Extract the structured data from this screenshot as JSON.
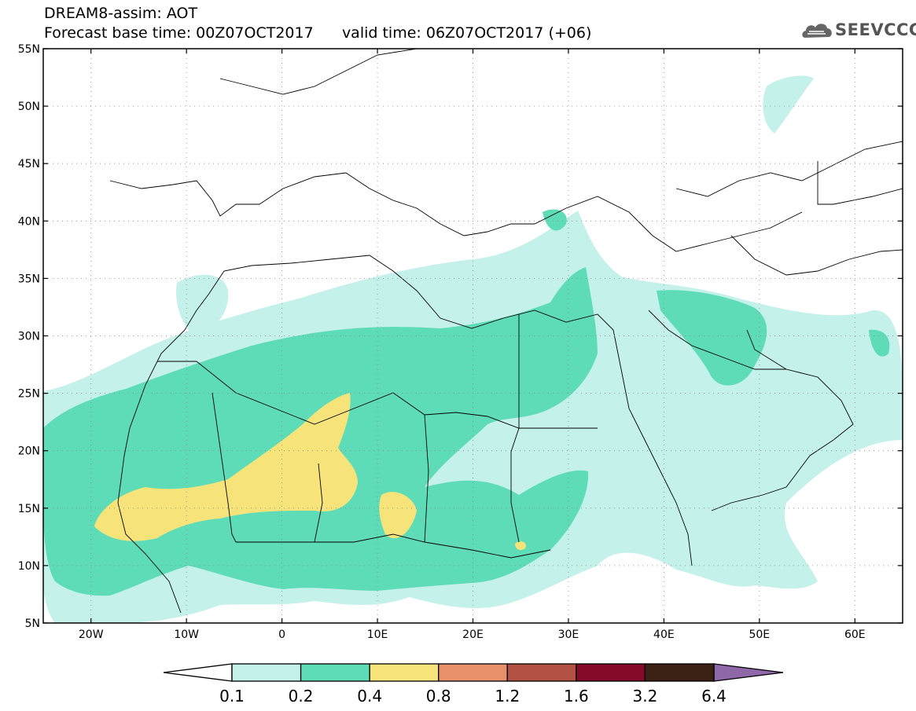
{
  "header": {
    "model_title": "DREAM8-assim: AOT",
    "forecast_label": "Forecast base time: 00Z07OCT2017",
    "valid_label": "valid time: 06Z07OCT2017 (+06)",
    "logo_text": "SEEVCCC"
  },
  "map": {
    "lon_range": [
      -25,
      65
    ],
    "lat_range": [
      5,
      55
    ],
    "lon_ticks": [
      {
        "value": -20,
        "label": "20W"
      },
      {
        "value": -10,
        "label": "10W"
      },
      {
        "value": 0,
        "label": "0"
      },
      {
        "value": 10,
        "label": "10E"
      },
      {
        "value": 20,
        "label": "20E"
      },
      {
        "value": 30,
        "label": "30E"
      },
      {
        "value": 40,
        "label": "40E"
      },
      {
        "value": 50,
        "label": "50E"
      },
      {
        "value": 60,
        "label": "60E"
      }
    ],
    "lat_ticks": [
      {
        "value": 5,
        "label": "5N"
      },
      {
        "value": 10,
        "label": "10N"
      },
      {
        "value": 15,
        "label": "15N"
      },
      {
        "value": 20,
        "label": "20N"
      },
      {
        "value": 25,
        "label": "25N"
      },
      {
        "value": 30,
        "label": "30N"
      },
      {
        "value": 35,
        "label": "35N"
      },
      {
        "value": 40,
        "label": "40N"
      },
      {
        "value": 45,
        "label": "45N"
      },
      {
        "value": 50,
        "label": "50N"
      },
      {
        "value": 55,
        "label": "55N"
      }
    ],
    "grid": "dotted"
  },
  "colorbar": {
    "levels": [
      "0.1",
      "0.2",
      "0.4",
      "0.8",
      "1.2",
      "1.6",
      "3.2",
      "6.4"
    ],
    "below_color": "#ffffff",
    "colors": [
      "#c4f1ea",
      "#5edcb8",
      "#f6e47a",
      "#e8906a",
      "#b25244",
      "#850a2a",
      "#3b2214"
    ],
    "above_color": "#8e68a8"
  }
}
